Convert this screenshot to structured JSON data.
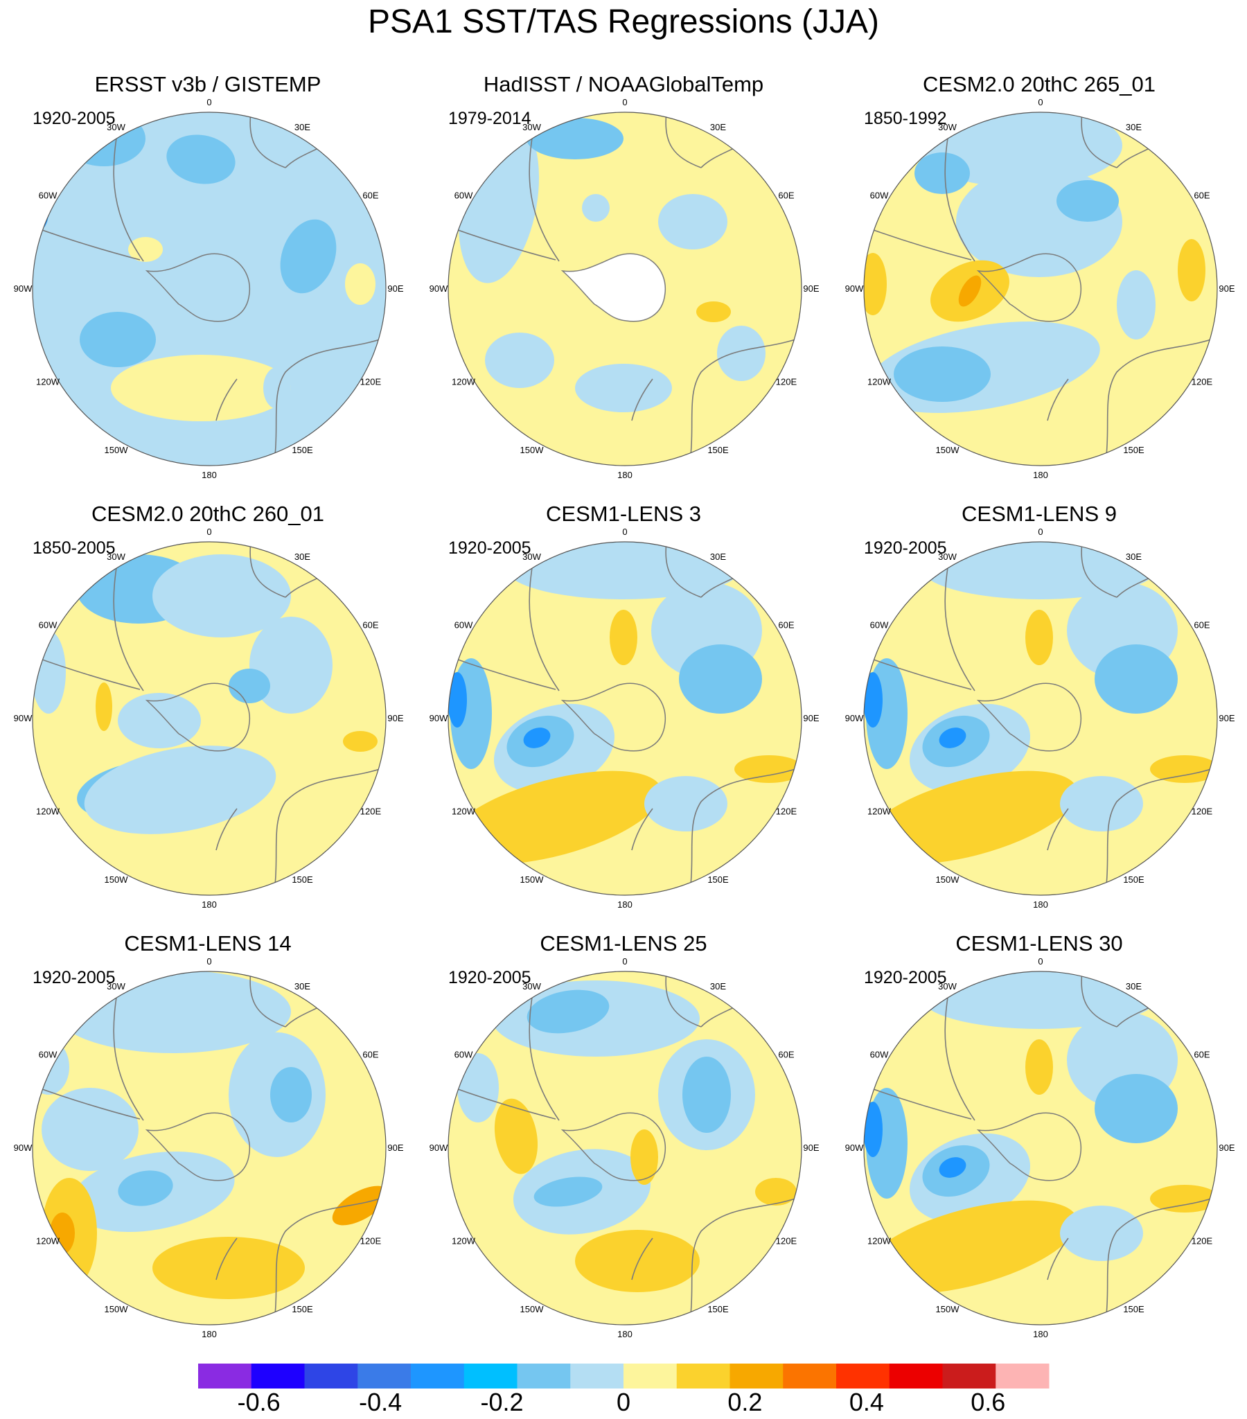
{
  "title": "PSA1 SST/TAS Regressions (JJA)",
  "panels": [
    {
      "title": "ERSST v3b / GISTEMP",
      "period": "1920-2005",
      "style": "ersst"
    },
    {
      "title": "HadISST / NOAAGlobalTemp",
      "period": "1979-2014",
      "style": "hadisst"
    },
    {
      "title": "CESM2.0 20thC 265_01",
      "period": "1850-1992",
      "style": "cesm2a"
    },
    {
      "title": "CESM2.0 20thC 260_01",
      "period": "1850-2005",
      "style": "cesm2b"
    },
    {
      "title": "CESM1-LENS 3",
      "period": "1920-2005",
      "style": "lens"
    },
    {
      "title": "CESM1-LENS 9",
      "period": "1920-2005",
      "style": "lens"
    },
    {
      "title": "CESM1-LENS 14",
      "period": "1920-2005",
      "style": "lens14"
    },
    {
      "title": "CESM1-LENS 25",
      "period": "1920-2005",
      "style": "lens25"
    },
    {
      "title": "CESM1-LENS 30",
      "period": "1920-2005",
      "style": "lens"
    }
  ],
  "longitude_labels": [
    "0",
    "30E",
    "60E",
    "90E",
    "120E",
    "150E",
    "180",
    "150W",
    "120W",
    "90W",
    "60W",
    "30W"
  ],
  "colorbar": {
    "colors": [
      "#8a2be2",
      "#1e00ff",
      "#2e45e6",
      "#3a7be8",
      "#1e96ff",
      "#00bfff",
      "#75c6f0",
      "#b4def3",
      "#fdf59c",
      "#fbd22d",
      "#f7a800",
      "#fb7400",
      "#ff3200",
      "#ec0000",
      "#cb1c1c",
      "#fdb4b4"
    ],
    "tick_labels": [
      "-0.6",
      "-0.4",
      "-0.2",
      "0",
      "0.2",
      "0.4",
      "0.6"
    ],
    "tick_values": [
      -0.6,
      -0.4,
      -0.2,
      0,
      0.2,
      0.4,
      0.6
    ],
    "bounds": [
      -0.7,
      0.7
    ]
  },
  "palette": {
    "neg3": "#3a7be8",
    "neg2": "#1e96ff",
    "neg1": "#75c6f0",
    "neg0": "#b4def3",
    "pos0": "#fdf59c",
    "pos1": "#fbd22d",
    "pos2": "#f7a800",
    "pos3": "#fb7400",
    "coast": "#7a7a7a"
  }
}
